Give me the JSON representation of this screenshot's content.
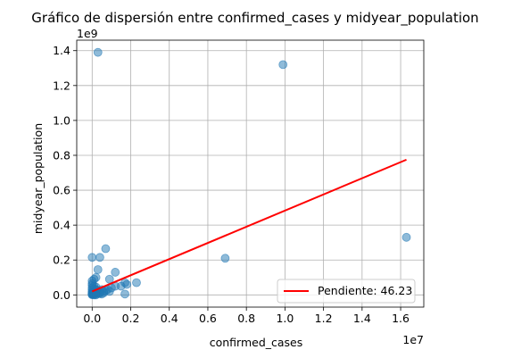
{
  "chart_data": {
    "type": "scatter",
    "title": "Gráfico de dispersión entre confirmed_cases y midyear_population",
    "xlabel": "confirmed_cases",
    "ylabel": "midyear_population",
    "x_offset_label": "1e7",
    "y_offset_label": "1e9",
    "xlim": [
      -0.08,
      1.72
    ],
    "ylim": [
      -0.07,
      1.46
    ],
    "x_ticks": [
      0.0,
      0.2,
      0.4,
      0.6,
      0.8,
      1.0,
      1.2,
      1.4,
      1.6
    ],
    "x_tick_labels": [
      "0.0",
      "0.2",
      "0.4",
      "0.6",
      "0.8",
      "1.0",
      "1.2",
      "1.4",
      "1.6"
    ],
    "y_ticks": [
      0.0,
      0.2,
      0.4,
      0.6,
      0.8,
      1.0,
      1.2,
      1.4
    ],
    "y_tick_labels": [
      "0.0",
      "0.2",
      "0.4",
      "0.6",
      "0.8",
      "1.0",
      "1.2",
      "1.4"
    ],
    "grid": true,
    "legend_position": "lower-right",
    "colors": {
      "points": "#1f77b4",
      "line": "#ff0000"
    },
    "series": [
      {
        "points": [
          [
            0.03,
            1.39
          ],
          [
            0.99,
            1.32
          ],
          [
            1.63,
            0.33
          ],
          [
            0.69,
            0.21
          ],
          [
            0.07,
            0.265
          ],
          [
            0.04,
            0.215
          ],
          [
            0.0,
            0.215
          ],
          [
            0.03,
            0.145
          ],
          [
            0.12,
            0.13
          ],
          [
            0.09,
            0.09
          ],
          [
            0.17,
            0.07
          ],
          [
            0.23,
            0.07
          ],
          [
            0.18,
            0.06
          ],
          [
            0.15,
            0.05
          ],
          [
            0.1,
            0.04
          ],
          [
            0.12,
            0.05
          ],
          [
            0.17,
            0.005
          ],
          [
            0.05,
            0.03
          ],
          [
            0.06,
            0.02
          ],
          [
            0.07,
            0.025
          ],
          [
            0.08,
            0.03
          ],
          [
            0.09,
            0.02
          ],
          [
            0.02,
            0.1
          ],
          [
            0.01,
            0.09
          ],
          [
            0.0,
            0.08
          ],
          [
            0.0,
            0.065
          ],
          [
            0.0,
            0.055
          ],
          [
            0.01,
            0.05
          ],
          [
            0.02,
            0.045
          ],
          [
            0.0,
            0.04
          ],
          [
            0.01,
            0.035
          ],
          [
            0.0,
            0.03
          ],
          [
            0.02,
            0.03
          ],
          [
            0.03,
            0.025
          ],
          [
            0.0,
            0.02
          ],
          [
            0.01,
            0.018
          ],
          [
            0.02,
            0.015
          ],
          [
            0.04,
            0.015
          ],
          [
            0.0,
            0.012
          ],
          [
            0.01,
            0.01
          ],
          [
            0.0,
            0.008
          ],
          [
            0.02,
            0.008
          ],
          [
            0.03,
            0.006
          ],
          [
            0.0,
            0.005
          ],
          [
            0.01,
            0.004
          ],
          [
            0.0,
            0.003
          ],
          [
            0.05,
            0.005
          ],
          [
            0.04,
            0.008
          ],
          [
            0.0,
            0.001
          ],
          [
            0.01,
            0.0
          ],
          [
            0.02,
            0.0
          ],
          [
            0.06,
            0.012
          ]
        ]
      },
      {
        "name": "Pendiente: 46.23",
        "kind": "line",
        "points": [
          [
            0.0,
            0.02
          ],
          [
            1.63,
            0.775
          ]
        ]
      }
    ]
  }
}
